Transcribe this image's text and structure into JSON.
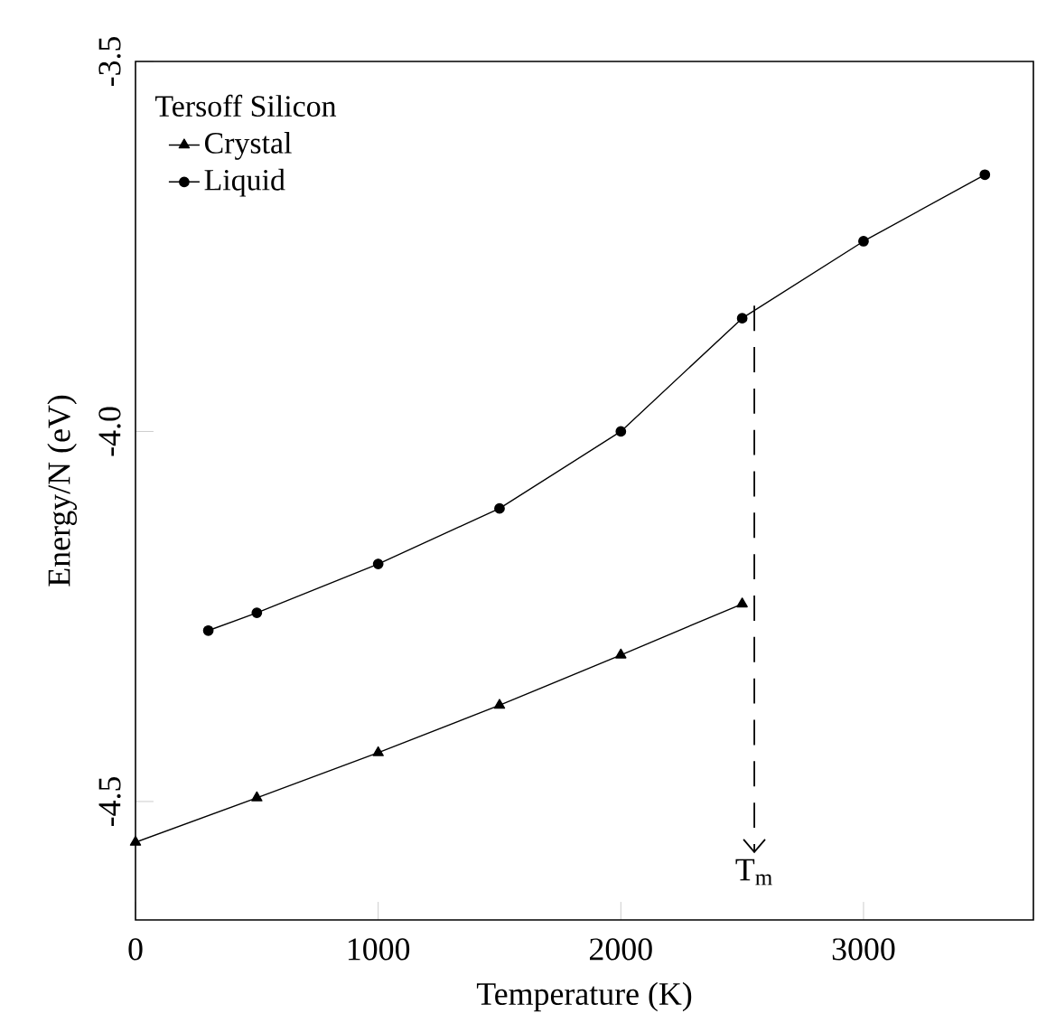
{
  "chart_data": {
    "type": "line",
    "xlabel": "Temperature (K)",
    "ylabel": "Energy/N (eV)",
    "legend_title": "Tersoff Silicon",
    "xlim": [
      0,
      3700
    ],
    "ylim": [
      -4.66,
      -3.5
    ],
    "xticks": [
      0,
      1000,
      2000,
      3000
    ],
    "yticks": [
      -4.5,
      {
        "value": -4.0,
        "label": "-4.0"
      },
      -3.5
    ],
    "legend": "top left",
    "grid": false,
    "line_style": "solid",
    "series": [
      {
        "name": "Crystal",
        "color": "#000000",
        "marker": "triangle",
        "x": [
          0,
          500,
          1000,
          1500,
          2000,
          2500
        ],
        "values": [
          -4.555,
          -4.495,
          -4.434,
          -4.37,
          -4.302,
          -4.233
        ]
      },
      {
        "name": "Liquid",
        "color": "#000000",
        "marker": "circle",
        "x": [
          300,
          500,
          1000,
          1500,
          2000,
          2500,
          3000,
          3500
        ],
        "values": [
          -4.269,
          -4.245,
          -4.179,
          -4.104,
          -4.0,
          -3.847,
          -3.743,
          -3.653
        ]
      },
      {
        "color": "#000000",
        "marker": "none",
        "line_style": "dashed",
        "x": [
          2550,
          2550
        ],
        "values": [
          -3.83,
          -4.57
        ]
      }
    ],
    "annotations": [
      {
        "text": "T$_{m}$",
        "x": 2550,
        "y": -4.57
      }
    ]
  }
}
